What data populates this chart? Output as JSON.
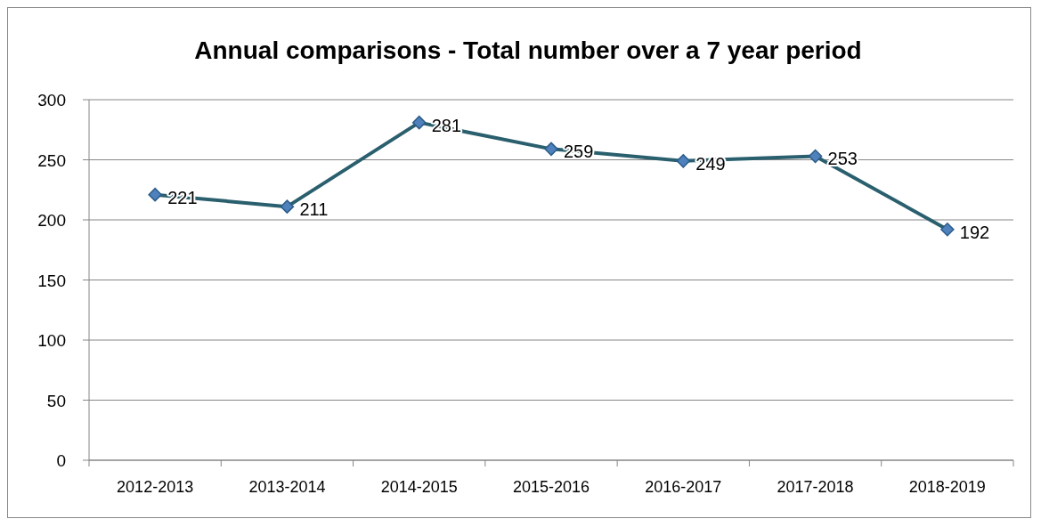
{
  "chart_data": {
    "type": "line",
    "title": "Annual comparisons - Total number over a 7 year period",
    "categories": [
      "2012-2013",
      "2013-2014",
      "2014-2015",
      "2015-2016",
      "2016-2017",
      "2017-2018",
      "2018-2019"
    ],
    "series": [
      {
        "color": "#2a5f6e",
        "values": [
          221,
          211,
          281,
          259,
          249,
          253,
          192
        ]
      }
    ],
    "ylim": [
      0,
      300
    ],
    "yticks": [
      0,
      50,
      100,
      150,
      200,
      250,
      300
    ],
    "grid": "y",
    "marker": "diamond",
    "line_style": "solid",
    "data_labels": true
  }
}
